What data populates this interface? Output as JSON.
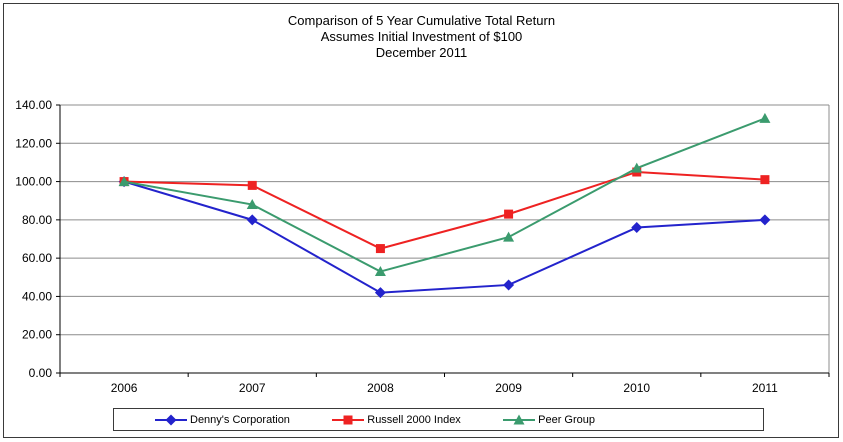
{
  "title": {
    "line1": "Comparison of 5 Year Cumulative Total Return",
    "line2": "Assumes Initial Investment of $100",
    "line3": "December 2011"
  },
  "chart_data": {
    "type": "line",
    "title": "Comparison of 5 Year Cumulative Total Return — Assumes Initial Investment of $100 — December 2011",
    "categories": [
      "2006",
      "2007",
      "2008",
      "2009",
      "2010",
      "2011"
    ],
    "series": [
      {
        "name": "Denny's Corporation",
        "marker": "diamond",
        "color": "#2323cc",
        "values": [
          100,
          80,
          42,
          46,
          76,
          80
        ]
      },
      {
        "name": "Russell 2000 Index",
        "marker": "square",
        "color": "#ee2222",
        "values": [
          100,
          98,
          65,
          83,
          105,
          101
        ]
      },
      {
        "name": "Peer Group",
        "marker": "triangle",
        "color": "#3b9b6e",
        "values": [
          100,
          88,
          53,
          71,
          107,
          133
        ]
      }
    ],
    "xlabel": "",
    "ylabel": "",
    "ylim": [
      0,
      140
    ],
    "ytick_step": 20,
    "yticks": [
      "0.00",
      "20.00",
      "40.00",
      "60.00",
      "80.00",
      "100.00",
      "120.00",
      "140.00"
    ],
    "grid": "horizontal",
    "legend_position": "bottom"
  },
  "colors": {
    "gridline": "#8c8c8c",
    "axis": "#000000",
    "plot_border": "#8c8c8c",
    "outer_border": "#3a3a3a",
    "background": "#ffffff"
  }
}
